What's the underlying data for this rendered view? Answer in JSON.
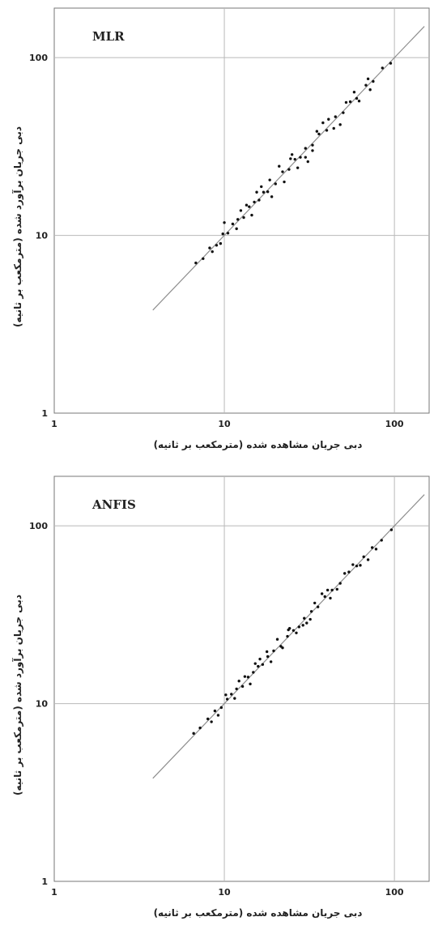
{
  "chart_data": [
    {
      "type": "scatter",
      "title": "MLR",
      "xlabel": "دبی جریان مشاهده شده (مترمکعب بر ثانیه)",
      "ylabel": "دبی جریان برآورد شده (مترمکعب بر ثانیه)",
      "xscale": "log",
      "yscale": "log",
      "xlim": [
        1,
        160
      ],
      "ylim": [
        1,
        190
      ],
      "xticks": [
        "1",
        "10",
        "100"
      ],
      "yticks": [
        "1",
        "10",
        "100"
      ],
      "grid": true,
      "reference_line": {
        "style": "1:1",
        "x": [
          3.8,
          150
        ],
        "y": [
          3.8,
          150
        ]
      },
      "points": {
        "x": [
          6.8,
          7.5,
          8.2,
          9.0,
          9.8,
          10.5,
          11.2,
          12.0,
          13.0,
          14.0,
          15.0,
          16.0,
          17.0,
          18.0,
          20.0,
          22.0,
          24.0,
          26.0,
          28.0,
          30.0,
          33.0,
          36.0,
          40.0,
          45.0,
          50.0,
          55.0,
          60.0,
          68.0,
          75.0,
          85.0,
          95.0,
          12.5,
          15.5,
          19.0,
          25.0,
          31.0,
          38.0,
          48.0,
          58.0,
          72.0,
          9.5,
          14.5,
          21.0,
          27.0,
          35.0,
          44.0,
          62.0,
          10.0,
          18.5,
          30.0,
          13.5,
          22.5,
          41.0,
          16.5,
          33.0,
          52.0,
          8.5,
          11.8,
          24.5,
          70.0
        ],
        "y": [
          7.0,
          7.4,
          8.5,
          8.8,
          10.2,
          10.3,
          11.6,
          12.3,
          12.6,
          14.5,
          15.4,
          15.8,
          17.5,
          17.6,
          19.5,
          22.8,
          23.5,
          26.8,
          27.5,
          30.9,
          32.2,
          37.2,
          39.0,
          46.5,
          49.0,
          56.5,
          59.0,
          70.0,
          73.5,
          87.5,
          93.0,
          13.8,
          17.5,
          16.5,
          28.5,
          26.0,
          43.0,
          42.0,
          64.0,
          66.0,
          9.0,
          13.0,
          24.5,
          24.0,
          38.5,
          40.0,
          57.0,
          11.8,
          20.5,
          27.5,
          14.8,
          20.0,
          45.0,
          18.8,
          30.0,
          56.0,
          8.1,
          10.9,
          27.0,
          76.0
        ]
      }
    },
    {
      "type": "scatter",
      "title": "ANFIS",
      "xlabel": "دبی جریان مشاهده شده (مترمکعب بر ثانیه)",
      "ylabel": "دبی جریان برآورد شده (مترمکعب بر ثانیه)",
      "xscale": "log",
      "yscale": "log",
      "xlim": [
        1,
        160
      ],
      "ylim": [
        1,
        190
      ],
      "xticks": [
        "1",
        "10",
        "100"
      ],
      "yticks": [
        "1",
        "10",
        "100"
      ],
      "grid": true,
      "reference_line": {
        "style": "1:1",
        "x": [
          3.8,
          150
        ],
        "y": [
          3.8,
          150
        ]
      },
      "points": {
        "x": [
          6.6,
          7.2,
          8.0,
          8.8,
          9.6,
          10.4,
          11.0,
          11.8,
          12.8,
          13.8,
          14.8,
          15.8,
          16.8,
          18.0,
          19.5,
          21.5,
          23.5,
          25.5,
          27.5,
          29.5,
          32.5,
          35.5,
          39.0,
          43.0,
          48.0,
          54.0,
          60.0,
          66.0,
          74.0,
          84.0,
          96.0,
          12.2,
          15.2,
          18.8,
          24.2,
          30.5,
          37.5,
          46.0,
          57.0,
          70.0,
          9.2,
          14.2,
          20.5,
          26.5,
          34.0,
          42.0,
          63.0,
          10.2,
          17.8,
          29.0,
          13.2,
          22.0,
          40.5,
          16.2,
          32.0,
          51.0,
          8.4,
          11.5,
          23.8,
          78.0
        ],
        "y": [
          6.8,
          7.3,
          8.2,
          9.1,
          9.5,
          10.6,
          11.3,
          12.1,
          12.5,
          14.1,
          15.0,
          16.2,
          16.6,
          18.4,
          19.8,
          21.0,
          23.9,
          25.8,
          27.0,
          30.2,
          33.0,
          35.0,
          40.0,
          43.5,
          47.5,
          55.0,
          59.5,
          67.0,
          75.5,
          83.0,
          95.0,
          13.4,
          16.8,
          17.2,
          26.5,
          28.4,
          41.5,
          44.0,
          60.5,
          64.5,
          8.6,
          12.9,
          23.0,
          25.0,
          36.8,
          39.2,
          60.0,
          11.2,
          19.6,
          27.6,
          14.2,
          20.6,
          43.5,
          17.8,
          29.8,
          54.0,
          7.9,
          10.7,
          26.0,
          74.0
        ]
      }
    }
  ]
}
